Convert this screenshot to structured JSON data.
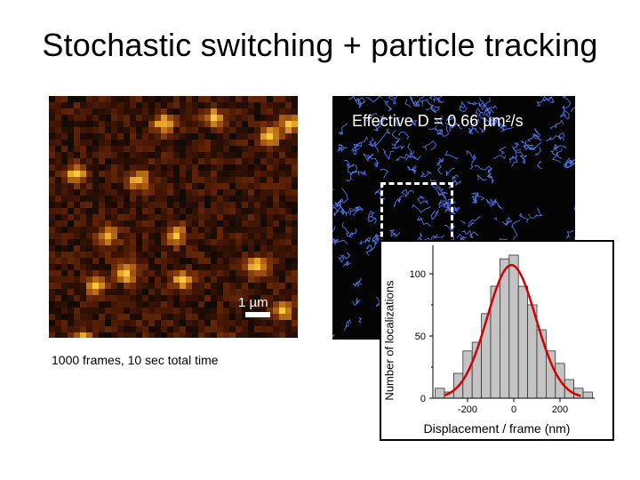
{
  "slide": {
    "title": "Stochastic switching + particle tracking",
    "scale_label": "1 µm",
    "left_caption": "1000 frames, 10 sec total time",
    "effective_d": "Effective D = 0.66 µm²/s"
  },
  "colors": {
    "accent_gold": "#f5a623",
    "track_blue": "#4f74e8",
    "fit_red": "#d40000",
    "bar_fill": "#c4c4c4"
  },
  "chart_data": {
    "type": "bar",
    "ylabel": "Number of localizations",
    "xlabel": "Displacement / frame (nm)",
    "xlim": [
      -350,
      350
    ],
    "ylim": [
      0,
      120
    ],
    "x_ticks": [
      -200,
      0,
      200
    ],
    "y_ticks": [
      0,
      50,
      100
    ],
    "bins": [
      {
        "center": -320,
        "value": 8
      },
      {
        "center": -280,
        "value": 5
      },
      {
        "center": -240,
        "value": 20
      },
      {
        "center": -200,
        "value": 38
      },
      {
        "center": -160,
        "value": 45
      },
      {
        "center": -120,
        "value": 68
      },
      {
        "center": -80,
        "value": 90
      },
      {
        "center": -40,
        "value": 112
      },
      {
        "center": 0,
        "value": 115
      },
      {
        "center": 40,
        "value": 90
      },
      {
        "center": 80,
        "value": 75
      },
      {
        "center": 120,
        "value": 55
      },
      {
        "center": 160,
        "value": 38
      },
      {
        "center": 200,
        "value": 28
      },
      {
        "center": 240,
        "value": 15
      },
      {
        "center": 280,
        "value": 8
      },
      {
        "center": 320,
        "value": 5
      }
    ],
    "fit": {
      "type": "gaussian",
      "amplitude": 107,
      "mean": -10,
      "sigma": 105
    }
  }
}
